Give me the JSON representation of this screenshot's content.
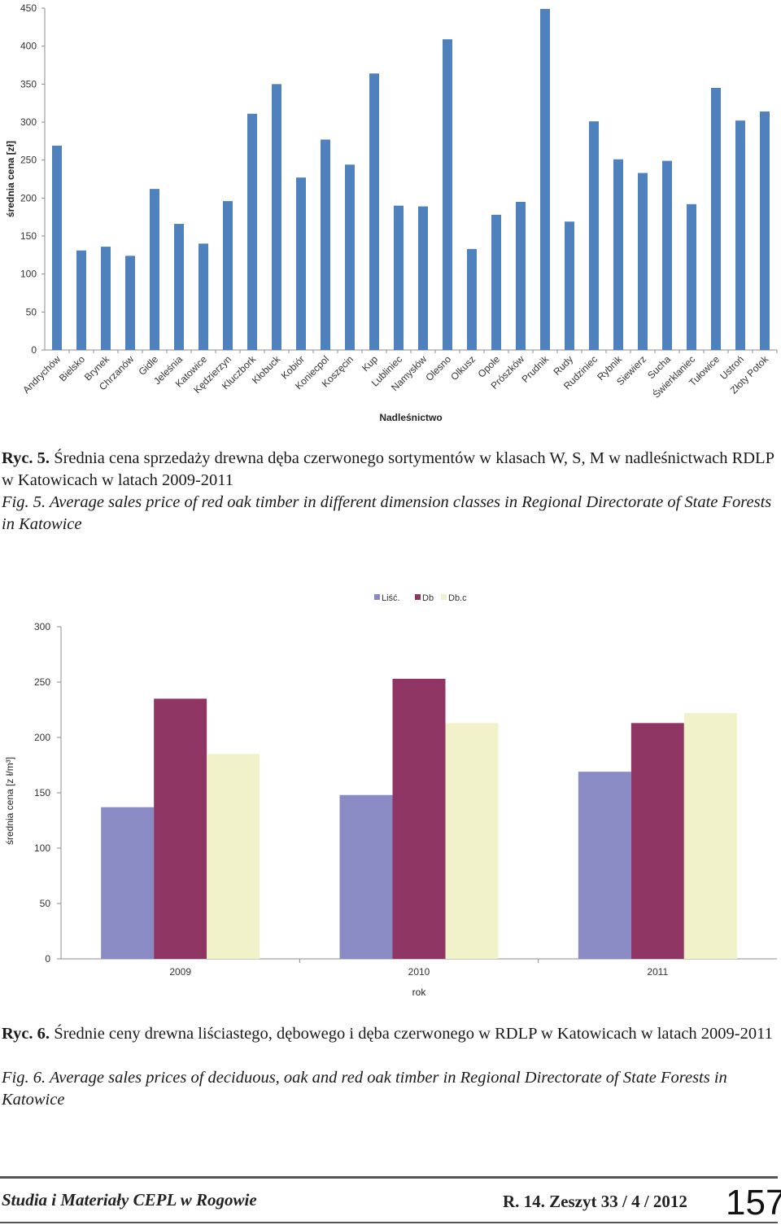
{
  "chart_data": [
    {
      "type": "bar",
      "title": "",
      "xlabel": "Nadleśnictwo",
      "ylabel": "średnia cena [zł]",
      "ylim": [
        0,
        450
      ],
      "yticks": [
        0,
        50,
        100,
        150,
        200,
        250,
        300,
        350,
        400,
        450
      ],
      "grid": false,
      "color": "#4f81bd",
      "categories": [
        "Andrychów",
        "Bielsko",
        "Brynek",
        "Chrzanów",
        "Gidle",
        "Jeleśnia",
        "Katowice",
        "Kędzierzyn",
        "Kluczbork",
        "Kłobuck",
        "Kobiór",
        "Koniecpol",
        "Koszęcin",
        "Kup",
        "Lubliniec",
        "Namysłów",
        "Olesno",
        "Olkusz",
        "Opole",
        "Prószków",
        "Prudnik",
        "Rudy",
        "Rudziniec",
        "Rybnik",
        "Siewierz",
        "Sucha",
        "Świerklaniec",
        "Tułowice",
        "Ustroń",
        "Złoty Potok"
      ],
      "values": [
        269,
        131,
        136,
        124,
        212,
        166,
        140,
        196,
        311,
        350,
        227,
        277,
        244,
        364,
        190,
        189,
        409,
        133,
        178,
        195,
        449,
        169,
        301,
        251,
        233,
        249,
        192,
        345,
        302,
        314
      ]
    },
    {
      "type": "bar",
      "title": "",
      "xlabel": "rok",
      "ylabel": "średnia cena [z ł/m³]",
      "ylim": [
        0,
        300
      ],
      "yticks": [
        0,
        50,
        100,
        150,
        200,
        250,
        300
      ],
      "grid": false,
      "legend_position": "top",
      "categories": [
        "2009",
        "2010",
        "2011"
      ],
      "series": [
        {
          "name": "Liść.",
          "color": "#8a8ac4",
          "values": [
            137,
            148,
            169
          ]
        },
        {
          "name": "Db",
          "color": "#8e3563",
          "values": [
            235,
            253,
            213
          ]
        },
        {
          "name": "Db.c",
          "color": "#f1f2c9",
          "values": [
            185,
            213,
            222
          ]
        }
      ]
    }
  ],
  "captions": {
    "fig5": {
      "pl_lead": "Ryc. 5.",
      "pl_text": " Średnia cena sprzedaży drewna dęba czerwonego sortymentów w klasach W, S, M w nadleśnictwach RDLP w Katowicach w latach 2009-2011",
      "en_text": "Fig. 5. Average sales price of red oak timber in different dimension classes in Regional Directorate of State Forests in Katowice"
    },
    "fig6": {
      "pl_lead": "Ryc. 6.",
      "pl_text": " Średnie ceny drewna liściastego, dębowego i dęba czerwonego w RDLP w Katowicach w latach 2009-2011",
      "en_text": "Fig. 6. Average sales prices of deciduous, oak and red oak timber in Regional Directorate of State Forests in Katowice"
    }
  },
  "footer": {
    "journal": "Studia i Materiały CEPL w Rogowie",
    "issue": "R. 14. Zeszyt 33 / 4 / 2012",
    "page_number": "157"
  }
}
